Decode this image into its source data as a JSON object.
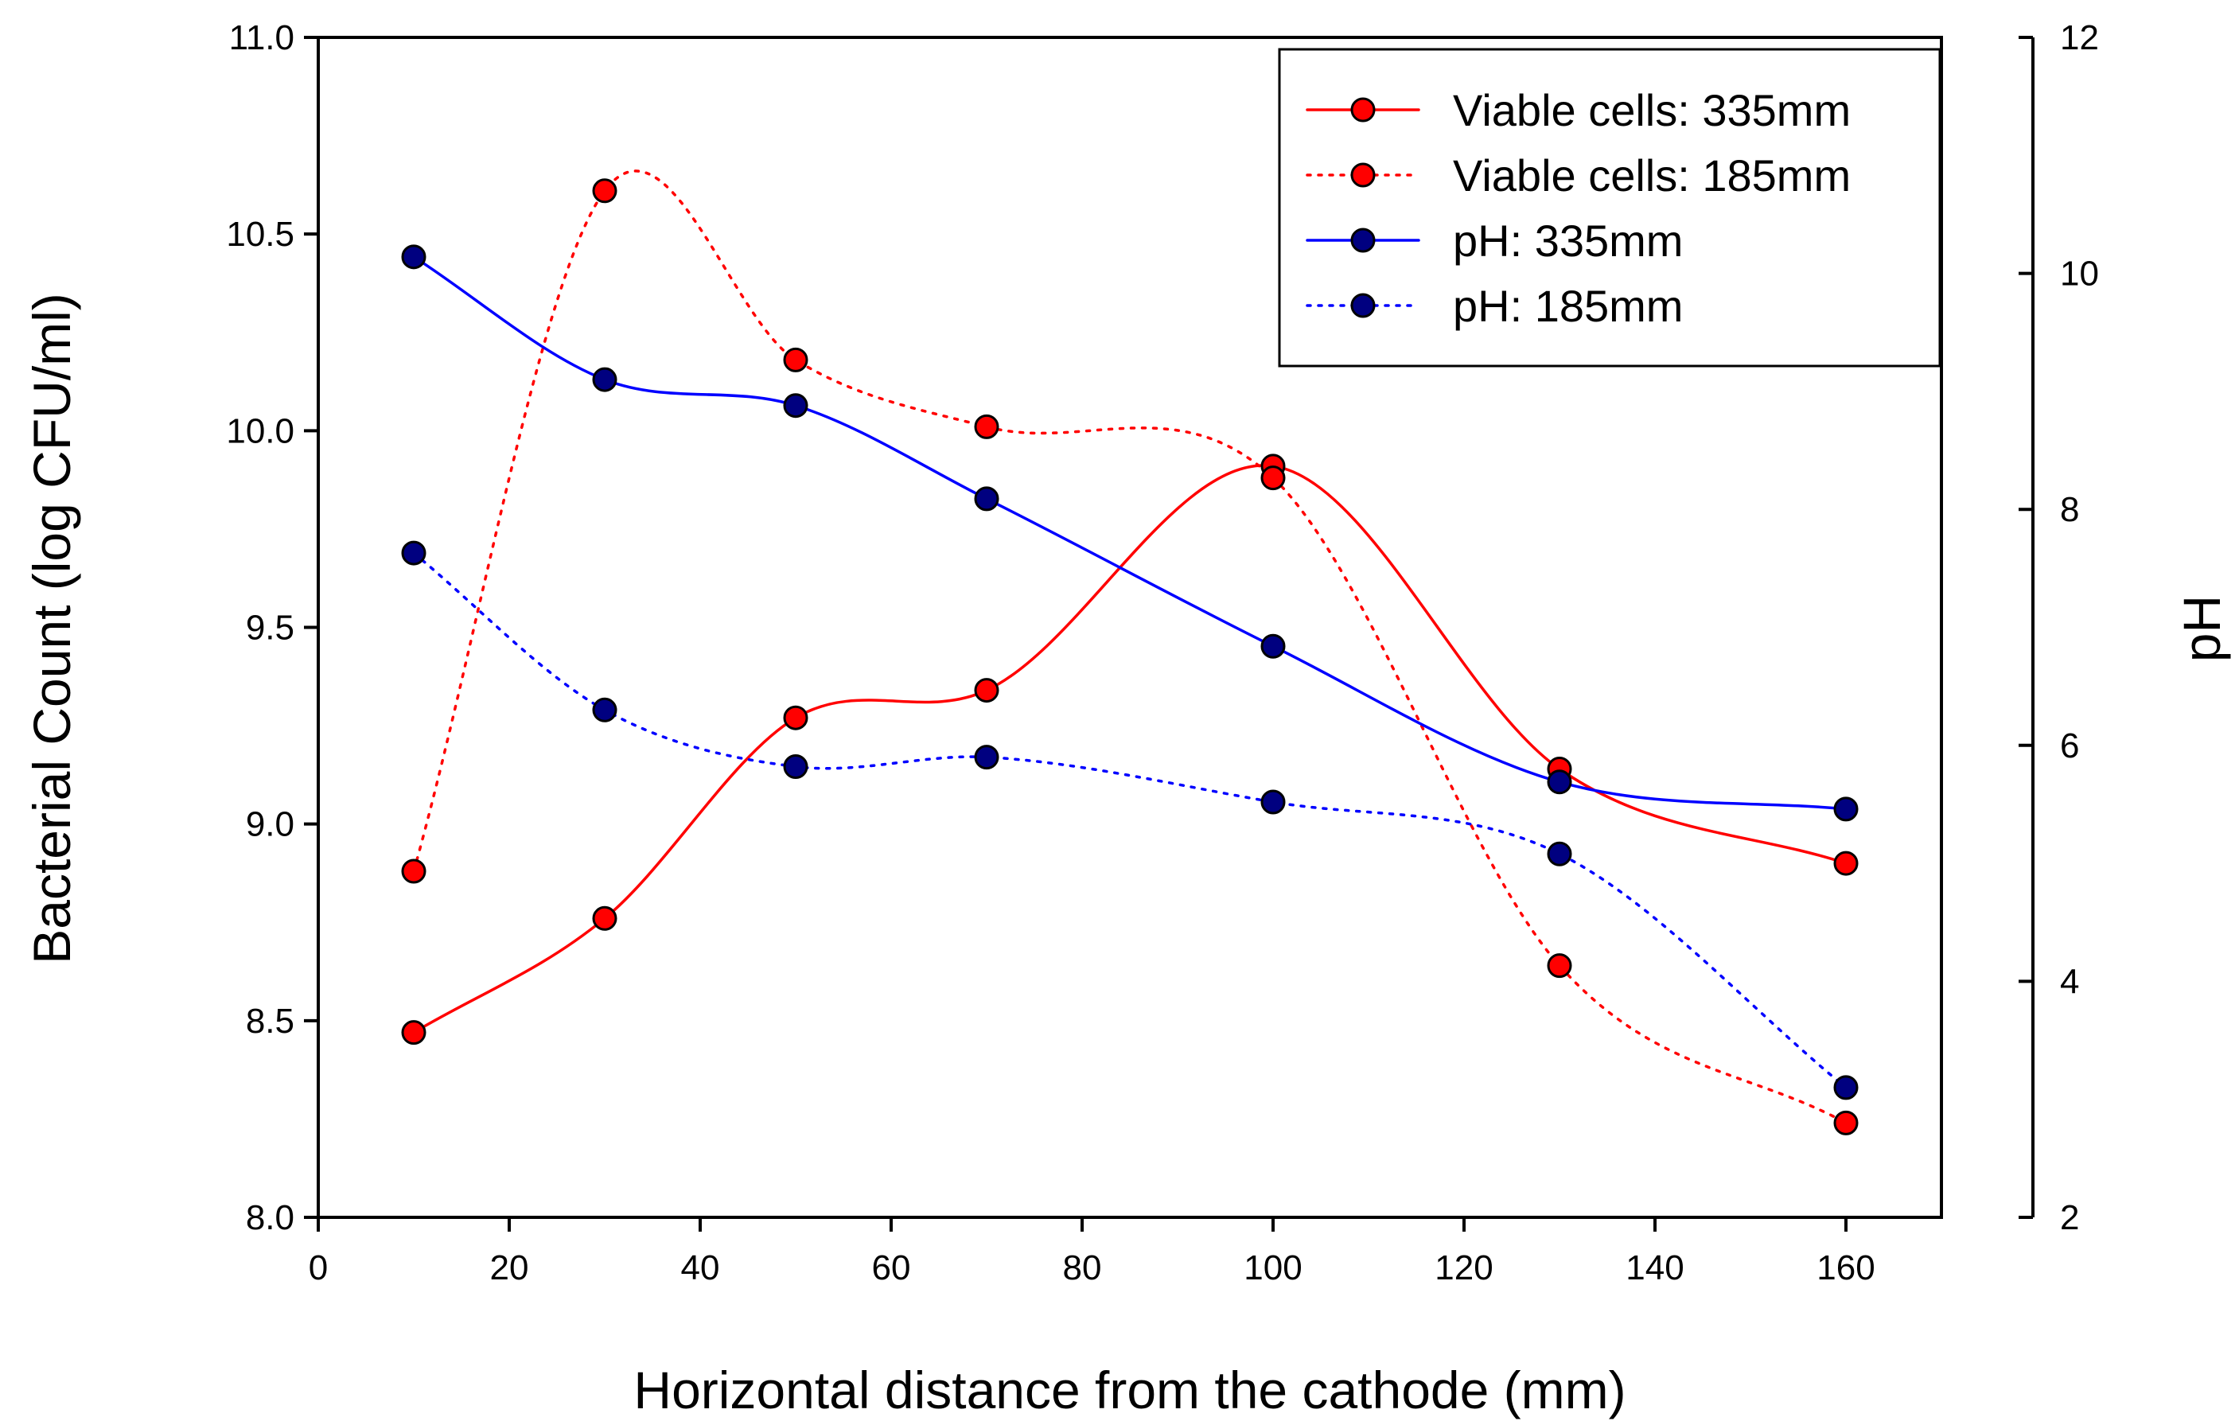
{
  "chart_data": {
    "type": "line",
    "title": "",
    "xlabel": "Horizontal distance from the cathode (mm)",
    "ylabel": "Bacterial Count (log CFU/ml)",
    "y2label": "pH",
    "xlim": [
      0,
      170
    ],
    "ylim": [
      8.0,
      11.0
    ],
    "y2lim": [
      2,
      12
    ],
    "x_ticks": [
      "0",
      "20",
      "40",
      "60",
      "80",
      "100",
      "120",
      "140",
      "160"
    ],
    "x_tick_values": [
      0,
      20,
      40,
      60,
      80,
      100,
      120,
      140,
      160
    ],
    "y_ticks": [
      "8.0",
      "8.5",
      "9.0",
      "9.5",
      "10.0",
      "10.5",
      "11.0"
    ],
    "y_tick_values": [
      8.0,
      8.5,
      9.0,
      9.5,
      10.0,
      10.5,
      11.0
    ],
    "y2_ticks": [
      "2",
      "4",
      "6",
      "8",
      "10",
      "12"
    ],
    "y2_tick_values": [
      2,
      4,
      6,
      8,
      10,
      12
    ],
    "grid": false,
    "legend_position": "top-right",
    "x": [
      10,
      30,
      50,
      70,
      100,
      130,
      160
    ],
    "series": [
      {
        "name": "Viable cells: 335mm",
        "axis": "left",
        "line": "solid",
        "color": "#ff0000",
        "values": [
          8.47,
          8.76,
          9.27,
          9.34,
          9.91,
          9.14,
          8.9
        ]
      },
      {
        "name": "Viable cells: 185mm",
        "axis": "left",
        "line": "dotted",
        "color": "#ff0000",
        "values": [
          8.88,
          10.61,
          10.18,
          10.01,
          9.88,
          8.64,
          8.24
        ]
      },
      {
        "name": "pH: 335mm",
        "axis": "right",
        "line": "solid",
        "color": "#0000ff",
        "values": [
          10.14,
          9.1,
          8.88,
          8.09,
          6.84,
          5.69,
          5.46
        ]
      },
      {
        "name": "pH: 185mm",
        "axis": "right",
        "line": "dotted",
        "color": "#0000ff",
        "values": [
          7.63,
          6.3,
          5.82,
          5.9,
          5.52,
          5.08,
          3.1
        ]
      }
    ],
    "marker_colors": {
      "red": "#ff0000",
      "navy": "#000080"
    }
  }
}
